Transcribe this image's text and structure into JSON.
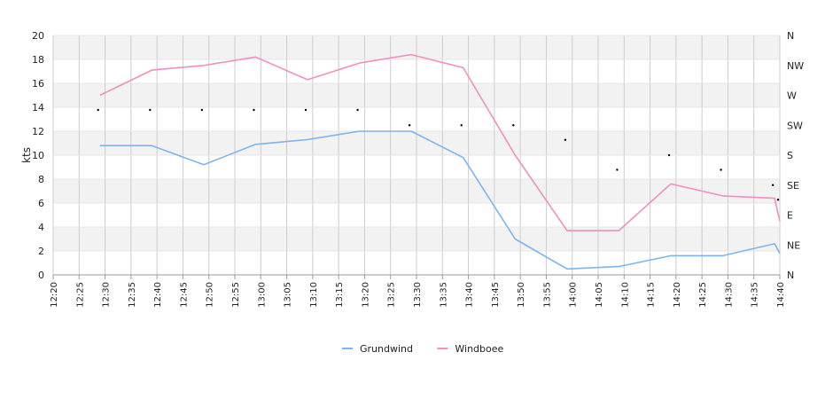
{
  "chart_data": {
    "type": "line",
    "ylabel": "kts",
    "ylim": [
      0,
      20
    ],
    "y_ticks": [
      "0",
      "2",
      "4",
      "6",
      "8",
      "10",
      "12",
      "14",
      "16",
      "18",
      "20"
    ],
    "right_axis_ticks": [
      "N",
      "NE",
      "E",
      "SE",
      "S",
      "SW",
      "W",
      "NW",
      "N"
    ],
    "x_ticks": [
      "12:20",
      "12:25",
      "12:30",
      "12:35",
      "12:40",
      "12:45",
      "12:50",
      "12:55",
      "13:00",
      "13:05",
      "13:10",
      "13:15",
      "13:20",
      "13:25",
      "13:30",
      "13:35",
      "13:40",
      "13:45",
      "13:50",
      "13:55",
      "14:00",
      "14:05",
      "14:10",
      "14:15",
      "14:20",
      "14:25",
      "14:30",
      "14:35",
      "14:40"
    ],
    "x_range_minutes": [
      0,
      140
    ],
    "grid": true,
    "legend_position": "bottom-center",
    "series": [
      {
        "name": "Grundwind",
        "color": "#7cb5ec",
        "x": [
          9,
          19,
          29,
          39,
          49,
          59,
          69,
          79,
          89,
          99,
          109,
          119,
          129,
          139,
          140
        ],
        "values": [
          10.8,
          10.8,
          9.2,
          10.9,
          11.3,
          12.0,
          12.0,
          9.8,
          3.0,
          0.5,
          0.7,
          1.6,
          1.6,
          2.6,
          1.8
        ]
      },
      {
        "name": "Windboee",
        "color": "#f08fc0",
        "x": [
          9,
          19,
          29,
          39,
          49,
          59,
          69,
          79,
          89,
          99,
          109,
          119,
          129,
          139,
          140
        ],
        "values": [
          15.0,
          17.1,
          17.5,
          18.2,
          16.3,
          17.7,
          18.4,
          17.3,
          10.0,
          3.7,
          3.7,
          7.6,
          6.6,
          6.4,
          4.5
        ]
      }
    ],
    "direction_markers": {
      "x": [
        9,
        19,
        29,
        39,
        49,
        59,
        69,
        79,
        89,
        99,
        109,
        119,
        129,
        139,
        140
      ],
      "degrees": [
        248,
        248,
        248,
        248,
        248,
        248,
        225,
        225,
        225,
        203,
        158,
        180,
        158,
        135,
        113
      ]
    }
  }
}
